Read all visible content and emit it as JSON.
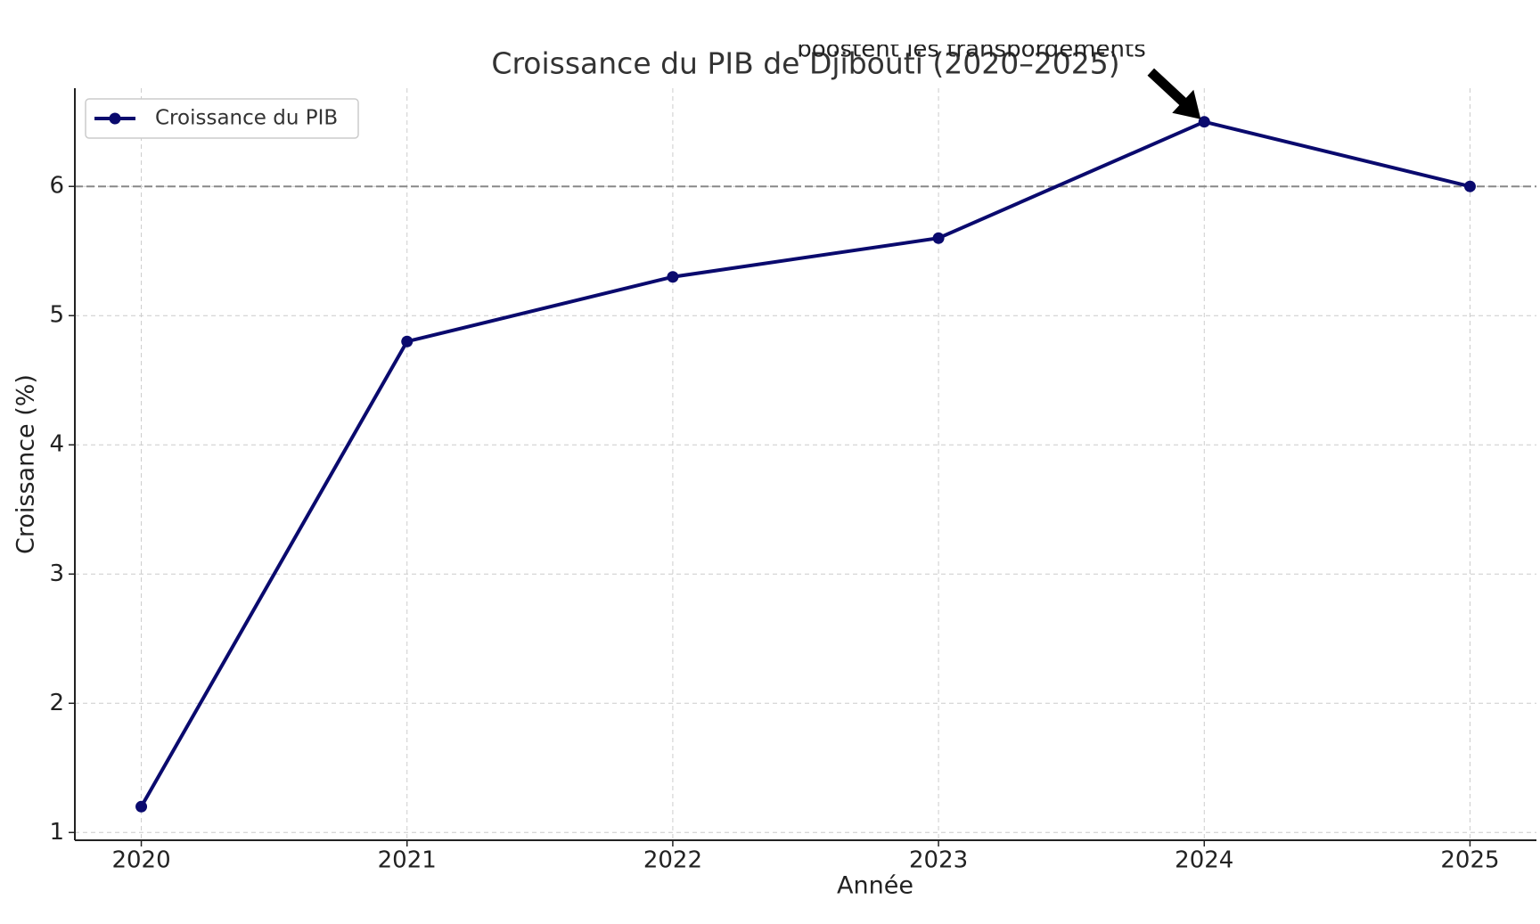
{
  "chart_data": {
    "type": "line",
    "title": "Croissance du PIB de Djibouti (2020–2025)",
    "x_label": "Année",
    "y_label": "Croissance (%)",
    "x": [
      2020,
      2021,
      2022,
      2023,
      2024,
      2025
    ],
    "series": [
      {
        "name": "Croissance du PIB",
        "color": "#0a0a6e",
        "values": [
          1.2,
          4.8,
          5.3,
          5.6,
          6.5,
          6.0
        ]
      }
    ],
    "xlim": [
      2019.75,
      2025.25
    ],
    "ylim": [
      0.94,
      6.76
    ],
    "xticks": [
      2020,
      2021,
      2022,
      2023,
      2024,
      2025
    ],
    "yticks": [
      1,
      2,
      3,
      4,
      5,
      6
    ],
    "hline": 6,
    "annotation": {
      "text": "boostent les transbordements",
      "x": 2024,
      "y": 6.5
    },
    "grid": true,
    "legend": "upper left"
  }
}
